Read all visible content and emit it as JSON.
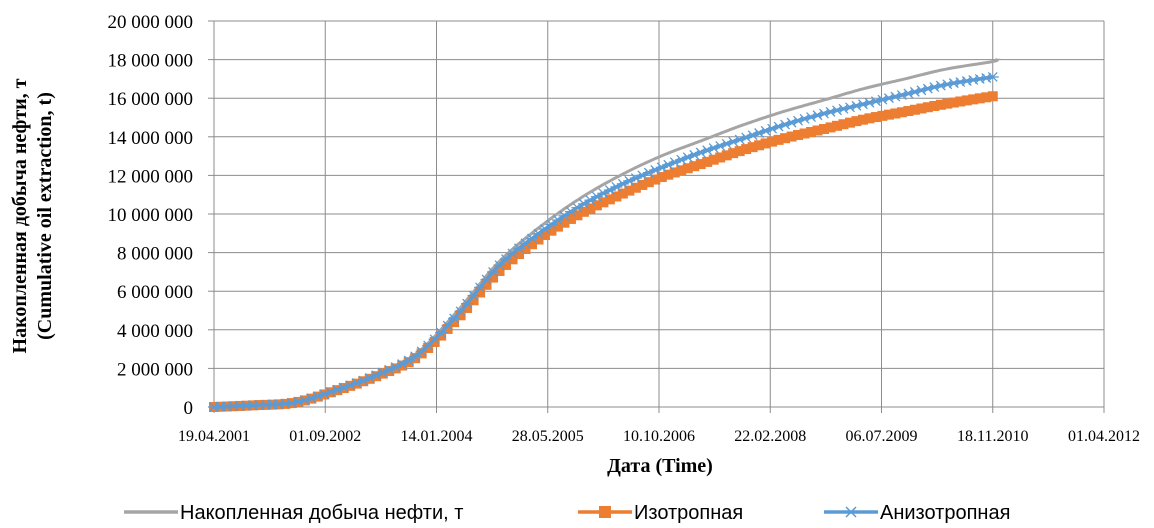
{
  "chart_data": {
    "type": "line",
    "xlabel": "Дата (Time)",
    "ylabel_line1": "Накопленная добыча нефти, т",
    "ylabel_line2": "(Cumulative oil extraction, t)",
    "x_ticks": [
      "19.04.2001",
      "01.09.2002",
      "14.01.2004",
      "28.05.2005",
      "10.10.2006",
      "22.02.2008",
      "06.07.2009",
      "18.11.2010",
      "01.04.2012"
    ],
    "xlim": [
      "19.04.2001",
      "01.04.2012"
    ],
    "y_ticks": [
      "0",
      "2 000 000",
      "4 000 000",
      "6 000 000",
      "8 000 000",
      "10 000 000",
      "12 000 000",
      "14 000 000",
      "16 000 000",
      "18 000 000",
      "20 000 000"
    ],
    "ylim": [
      0,
      20000000
    ],
    "grid": true,
    "legend_position": "bottom",
    "x": [
      "19.04.2001",
      "19.10.2001",
      "19.04.2002",
      "19.10.2002",
      "19.04.2003",
      "19.10.2003",
      "19.04.2004",
      "19.10.2004",
      "19.04.2005",
      "19.10.2005",
      "19.04.2006",
      "19.10.2006",
      "19.04.2007",
      "19.10.2007",
      "19.04.2008",
      "19.10.2008",
      "19.04.2009",
      "19.10.2009",
      "19.04.2010",
      "18.11.2010",
      "29.11.2010"
    ],
    "series": [
      {
        "name": "Накопленная добыча нефти, т",
        "color": "#a5a5a5",
        "marker": "none",
        "values": [
          0,
          100000,
          250000,
          900000,
          1700000,
          2800000,
          5000000,
          7500000,
          9300000,
          10800000,
          12000000,
          13000000,
          13800000,
          14600000,
          15300000,
          15900000,
          16500000,
          17000000,
          17500000,
          17900000,
          18000000
        ]
      },
      {
        "name": "Изотропная",
        "color": "#ed7d31",
        "marker": "square",
        "values": [
          0,
          90000,
          230000,
          850000,
          1600000,
          2600000,
          4600000,
          7000000,
          8700000,
          10000000,
          11000000,
          11900000,
          12600000,
          13300000,
          13900000,
          14400000,
          14900000,
          15300000,
          15700000,
          16100000,
          null
        ]
      },
      {
        "name": "Анизотропная",
        "color": "#5b9bd5",
        "marker": "asterisk",
        "values": [
          0,
          95000,
          240000,
          870000,
          1650000,
          2700000,
          4800000,
          7300000,
          9000000,
          10400000,
          11500000,
          12400000,
          13200000,
          13900000,
          14600000,
          15200000,
          15700000,
          16200000,
          16700000,
          17100000,
          null
        ]
      }
    ]
  }
}
